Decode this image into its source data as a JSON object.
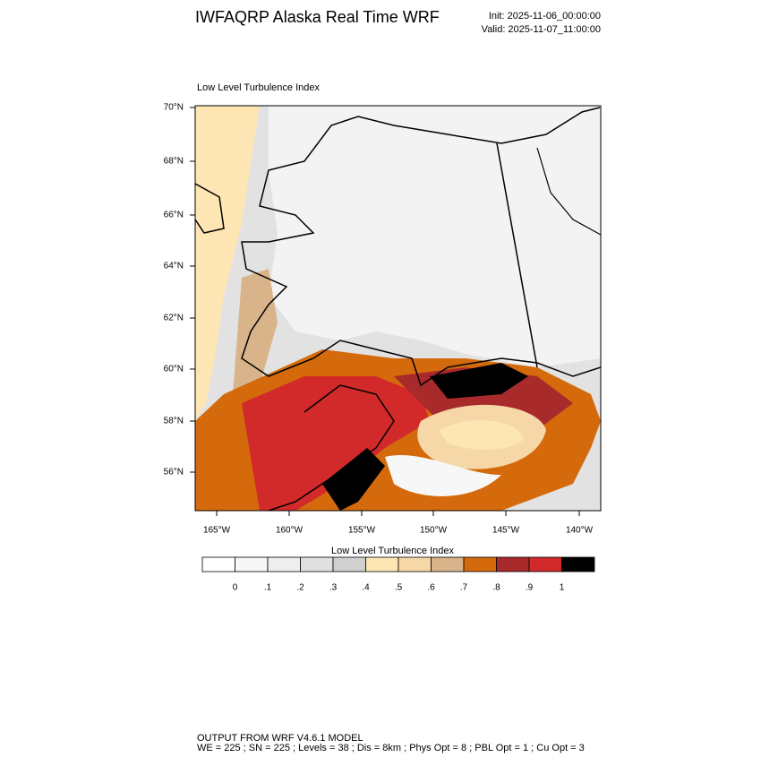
{
  "header": {
    "title": "IWFAQRP Alaska Real Time WRF",
    "init": "Init: 2025-11-06_00:00:00",
    "valid": "Valid: 2025-11-07_11:00:00"
  },
  "map": {
    "title": "Low Level Turbulence Index",
    "lat_labels": [
      "70°N",
      "68°N",
      "66°N",
      "64°N",
      "62°N",
      "60°N",
      "58°N",
      "56°N"
    ],
    "lon_labels": [
      "165°W",
      "160°W",
      "155°W",
      "150°W",
      "145°W",
      "140°W"
    ]
  },
  "colorbar": {
    "title": "Low Level Turbulence Index",
    "colors": [
      "#ffffff",
      "#f7f7f7",
      "#eeeeee",
      "#e0e0e0",
      "#d0d0d0",
      "#fde6b4",
      "#f6d8a8",
      "#d9b48a",
      "#d46a0c",
      "#a82a2a",
      "#d22a2a",
      "#000000"
    ],
    "labels": [
      "0",
      ".1",
      ".2",
      ".3",
      ".4",
      ".5",
      ".6",
      ".7",
      ".8",
      ".9",
      "1"
    ]
  },
  "footer": {
    "line1": "OUTPUT FROM WRF V4.6.1 MODEL",
    "line2": "WE = 225 ; SN = 225 ; Levels = 38 ; Dis = 8km ; Phys Opt = 8 ; PBL Opt = 1 ; Cu Opt = 3"
  }
}
